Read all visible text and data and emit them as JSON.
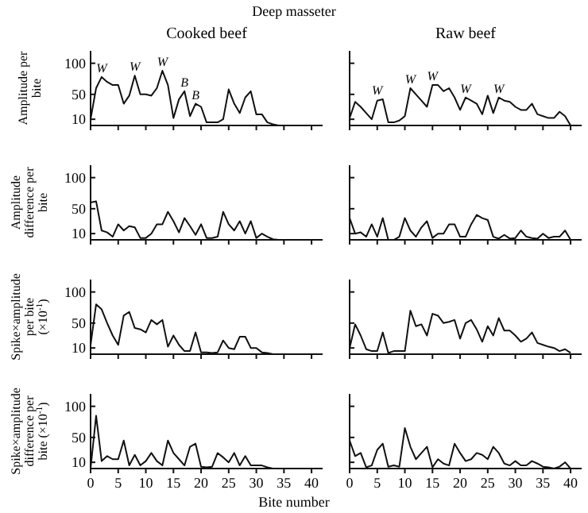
{
  "chart_data": [
    {
      "type": "line",
      "title": "Cooked beef",
      "ylabel": "Amplitude per bite",
      "annotations": [
        "Deep masseter",
        {
          "text": "W",
          "x": 2,
          "y": 78
        },
        {
          "text": "W",
          "x": 8,
          "y": 80
        },
        {
          "text": "W",
          "x": 13,
          "y": 88
        },
        {
          "text": "B",
          "x": 17,
          "y": 55
        },
        {
          "text": "B",
          "x": 19,
          "y": 35
        }
      ],
      "x": [
        0,
        1,
        2,
        3,
        4,
        5,
        6,
        7,
        8,
        9,
        10,
        11,
        12,
        13,
        14,
        15,
        16,
        17,
        18,
        19,
        20,
        21,
        22,
        23,
        24,
        25,
        26,
        27,
        28,
        29,
        30,
        31,
        32,
        33,
        34
      ],
      "series": [
        {
          "color": "#111111",
          "values": [
            10,
            60,
            78,
            70,
            65,
            65,
            35,
            48,
            80,
            50,
            50,
            48,
            60,
            88,
            65,
            12,
            42,
            55,
            15,
            35,
            30,
            5,
            5,
            5,
            10,
            58,
            35,
            20,
            45,
            55,
            18,
            18,
            5,
            2,
            0
          ]
        }
      ],
      "xlim": [
        0,
        42
      ],
      "ylim": [
        0,
        120
      ],
      "xticks": [
        {
          "value": 0,
          "label": null
        },
        {
          "value": 5,
          "label": null
        },
        {
          "value": 10,
          "label": null
        },
        {
          "value": 15,
          "label": null
        },
        {
          "value": 20,
          "label": null
        },
        {
          "value": 25,
          "label": null
        },
        {
          "value": 30,
          "label": null
        },
        {
          "value": 35,
          "label": null
        },
        {
          "value": 40,
          "label": null
        }
      ],
      "yticks": [
        10,
        50,
        100
      ],
      "tick_labels": "y"
    },
    {
      "type": "line",
      "title": "Raw beef",
      "annotations": [
        {
          "text": "W",
          "x": 5,
          "y": 42
        },
        {
          "text": "W",
          "x": 11,
          "y": 60
        },
        {
          "text": "W",
          "x": 15,
          "y": 65
        },
        {
          "text": "W",
          "x": 21,
          "y": 45
        },
        {
          "text": "W",
          "x": 27,
          "y": 45
        }
      ],
      "x": [
        0,
        1,
        2,
        3,
        4,
        5,
        6,
        7,
        8,
        9,
        10,
        11,
        12,
        13,
        14,
        15,
        16,
        17,
        18,
        19,
        20,
        21,
        22,
        23,
        24,
        25,
        26,
        27,
        28,
        29,
        30,
        31,
        32,
        33,
        34,
        35,
        36,
        37,
        38,
        39,
        40
      ],
      "series": [
        {
          "color": "#111111",
          "values": [
            12,
            38,
            30,
            20,
            10,
            40,
            42,
            5,
            5,
            8,
            15,
            60,
            50,
            40,
            30,
            65,
            65,
            55,
            60,
            45,
            25,
            45,
            40,
            35,
            18,
            48,
            20,
            45,
            40,
            38,
            30,
            25,
            25,
            35,
            18,
            15,
            12,
            12,
            22,
            15,
            0
          ]
        }
      ],
      "xlim": [
        0,
        42
      ],
      "ylim": [
        0,
        120
      ],
      "xticks": [
        {
          "value": 0,
          "label": null
        },
        {
          "value": 5,
          "label": null
        },
        {
          "value": 10,
          "label": null
        },
        {
          "value": 15,
          "label": null
        },
        {
          "value": 20,
          "label": null
        },
        {
          "value": 25,
          "label": null
        },
        {
          "value": 30,
          "label": null
        },
        {
          "value": 35,
          "label": null
        },
        {
          "value": 40,
          "label": null
        }
      ],
      "yticks": [
        {
          "value": 10,
          "label": null
        },
        {
          "value": 50,
          "label": null
        },
        {
          "value": 100,
          "label": null
        }
      ],
      "tick_labels": false
    },
    {
      "type": "line",
      "ylabel": "Amplitude difference per bite",
      "x": [
        0,
        1,
        2,
        3,
        4,
        5,
        6,
        7,
        8,
        9,
        10,
        11,
        12,
        13,
        14,
        15,
        16,
        17,
        18,
        19,
        20,
        21,
        22,
        23,
        24,
        25,
        26,
        27,
        28,
        29,
        30,
        31,
        32,
        33,
        34
      ],
      "series": [
        {
          "color": "#111111",
          "values": [
            60,
            62,
            15,
            12,
            5,
            25,
            15,
            22,
            20,
            3,
            3,
            10,
            25,
            25,
            45,
            30,
            12,
            35,
            22,
            8,
            25,
            3,
            3,
            5,
            45,
            25,
            15,
            30,
            10,
            30,
            3,
            10,
            5,
            1,
            0
          ]
        }
      ],
      "xlim": [
        0,
        42
      ],
      "ylim": [
        0,
        120
      ],
      "xticks": [
        {
          "value": 0,
          "label": null
        },
        {
          "value": 5,
          "label": null
        },
        {
          "value": 10,
          "label": null
        },
        {
          "value": 15,
          "label": null
        },
        {
          "value": 20,
          "label": null
        },
        {
          "value": 25,
          "label": null
        },
        {
          "value": 30,
          "label": null
        },
        {
          "value": 35,
          "label": null
        },
        {
          "value": 40,
          "label": null
        }
      ],
      "yticks": [
        10,
        50,
        100
      ],
      "tick_labels": "y"
    },
    {
      "type": "line",
      "x": [
        0,
        1,
        2,
        3,
        4,
        5,
        6,
        7,
        8,
        9,
        10,
        11,
        12,
        13,
        14,
        15,
        16,
        17,
        18,
        19,
        20,
        21,
        22,
        23,
        24,
        25,
        26,
        27,
        28,
        29,
        30,
        31,
        32,
        33,
        34,
        35,
        36,
        37,
        38,
        39,
        40
      ],
      "series": [
        {
          "color": "#111111",
          "values": [
            35,
            10,
            12,
            5,
            25,
            5,
            35,
            0,
            0,
            5,
            35,
            15,
            5,
            20,
            30,
            3,
            10,
            10,
            25,
            25,
            5,
            5,
            25,
            40,
            35,
            32,
            5,
            2,
            8,
            2,
            3,
            15,
            5,
            3,
            2,
            10,
            3,
            5,
            5,
            15,
            0
          ]
        }
      ],
      "xlim": [
        0,
        42
      ],
      "ylim": [
        0,
        120
      ],
      "xticks": [
        {
          "value": 0,
          "label": null
        },
        {
          "value": 5,
          "label": null
        },
        {
          "value": 10,
          "label": null
        },
        {
          "value": 15,
          "label": null
        },
        {
          "value": 20,
          "label": null
        },
        {
          "value": 25,
          "label": null
        },
        {
          "value": 30,
          "label": null
        },
        {
          "value": 35,
          "label": null
        },
        {
          "value": 40,
          "label": null
        }
      ],
      "yticks": [
        {
          "value": 10,
          "label": null
        },
        {
          "value": 50,
          "label": null
        },
        {
          "value": 100,
          "label": null
        }
      ],
      "tick_labels": false
    },
    {
      "type": "line",
      "ylabel": "Spike×amplitude per bite (×10$^{-1}$)",
      "x": [
        0,
        1,
        2,
        3,
        4,
        5,
        6,
        7,
        8,
        9,
        10,
        11,
        12,
        13,
        14,
        15,
        16,
        17,
        18,
        19,
        20,
        21,
        22,
        23,
        24,
        25,
        26,
        27,
        28,
        29,
        30,
        31,
        32,
        33
      ],
      "series": [
        {
          "color": "#111111",
          "values": [
            15,
            80,
            72,
            50,
            30,
            15,
            62,
            68,
            42,
            40,
            35,
            55,
            48,
            55,
            12,
            30,
            15,
            5,
            5,
            35,
            3,
            3,
            2,
            3,
            22,
            10,
            8,
            28,
            28,
            10,
            10,
            3,
            2,
            0
          ]
        }
      ],
      "xlim": [
        0,
        42
      ],
      "ylim": [
        0,
        120
      ],
      "xticks": [
        {
          "value": 0,
          "label": null
        },
        {
          "value": 5,
          "label": null
        },
        {
          "value": 10,
          "label": null
        },
        {
          "value": 15,
          "label": null
        },
        {
          "value": 20,
          "label": null
        },
        {
          "value": 25,
          "label": null
        },
        {
          "value": 30,
          "label": null
        },
        {
          "value": 35,
          "label": null
        },
        {
          "value": 40,
          "label": null
        }
      ],
      "yticks": [
        10,
        50,
        100
      ],
      "tick_labels": "y"
    },
    {
      "type": "line",
      "x": [
        0,
        1,
        2,
        3,
        4,
        5,
        6,
        7,
        8,
        9,
        10,
        11,
        12,
        13,
        14,
        15,
        16,
        17,
        18,
        19,
        20,
        21,
        22,
        23,
        24,
        25,
        26,
        27,
        28,
        29,
        30,
        31,
        32,
        33,
        34,
        35,
        36,
        37,
        38,
        39,
        40
      ],
      "series": [
        {
          "color": "#111111",
          "values": [
            10,
            48,
            30,
            8,
            5,
            5,
            35,
            2,
            5,
            5,
            5,
            70,
            45,
            48,
            30,
            65,
            62,
            50,
            52,
            55,
            25,
            50,
            55,
            40,
            20,
            45,
            30,
            58,
            38,
            38,
            30,
            20,
            25,
            35,
            18,
            15,
            12,
            10,
            5,
            8,
            2
          ]
        }
      ],
      "xlim": [
        0,
        42
      ],
      "ylim": [
        0,
        120
      ],
      "xticks": [
        {
          "value": 0,
          "label": null
        },
        {
          "value": 5,
          "label": null
        },
        {
          "value": 10,
          "label": null
        },
        {
          "value": 15,
          "label": null
        },
        {
          "value": 20,
          "label": null
        },
        {
          "value": 25,
          "label": null
        },
        {
          "value": 30,
          "label": null
        },
        {
          "value": 35,
          "label": null
        },
        {
          "value": 40,
          "label": null
        }
      ],
      "yticks": [
        {
          "value": 10,
          "label": null
        },
        {
          "value": 50,
          "label": null
        },
        {
          "value": 100,
          "label": null
        }
      ],
      "tick_labels": false
    },
    {
      "type": "line",
      "ylabel": "Spike×amplitude difference per bite (×10$^{-1}$)",
      "xlabel": "Bite number",
      "x": [
        0,
        1,
        2,
        3,
        4,
        5,
        6,
        7,
        8,
        9,
        10,
        11,
        12,
        13,
        14,
        15,
        16,
        17,
        18,
        19,
        20,
        21,
        22,
        23,
        24,
        25,
        26,
        27,
        28,
        29,
        30,
        31,
        32,
        33
      ],
      "series": [
        {
          "color": "#111111",
          "values": [
            0,
            85,
            12,
            20,
            15,
            15,
            45,
            5,
            22,
            5,
            12,
            25,
            12,
            5,
            45,
            25,
            15,
            5,
            35,
            40,
            3,
            2,
            3,
            25,
            18,
            10,
            25,
            5,
            20,
            5,
            5,
            5,
            2,
            0
          ]
        }
      ],
      "xlim": [
        0,
        42
      ],
      "ylim": [
        0,
        120
      ],
      "xticks": [
        0,
        5,
        10,
        15,
        20,
        25,
        30,
        35,
        40
      ],
      "yticks": [
        10,
        50,
        100
      ]
    },
    {
      "type": "line",
      "x": [
        0,
        1,
        2,
        3,
        4,
        5,
        6,
        7,
        8,
        9,
        10,
        11,
        12,
        13,
        14,
        15,
        16,
        17,
        18,
        19,
        20,
        21,
        22,
        23,
        24,
        25,
        26,
        27,
        28,
        29,
        30,
        31,
        32,
        33,
        34,
        35,
        36,
        37,
        38,
        39,
        40
      ],
      "series": [
        {
          "color": "#111111",
          "values": [
            45,
            20,
            25,
            2,
            5,
            30,
            40,
            3,
            5,
            3,
            65,
            35,
            15,
            25,
            35,
            2,
            15,
            8,
            5,
            40,
            25,
            12,
            15,
            25,
            22,
            15,
            35,
            25,
            8,
            5,
            12,
            5,
            5,
            12,
            8,
            3,
            2,
            0,
            3,
            10,
            0
          ]
        }
      ],
      "xlim": [
        0,
        42
      ],
      "ylim": [
        0,
        120
      ],
      "xticks": [
        0,
        5,
        10,
        15,
        20,
        25,
        30,
        35,
        40
      ],
      "yticks": [
        {
          "value": 10,
          "label": null
        },
        {
          "value": 50,
          "label": null
        },
        {
          "value": 100,
          "label": null
        }
      ],
      "tick_labels": "x"
    }
  ]
}
